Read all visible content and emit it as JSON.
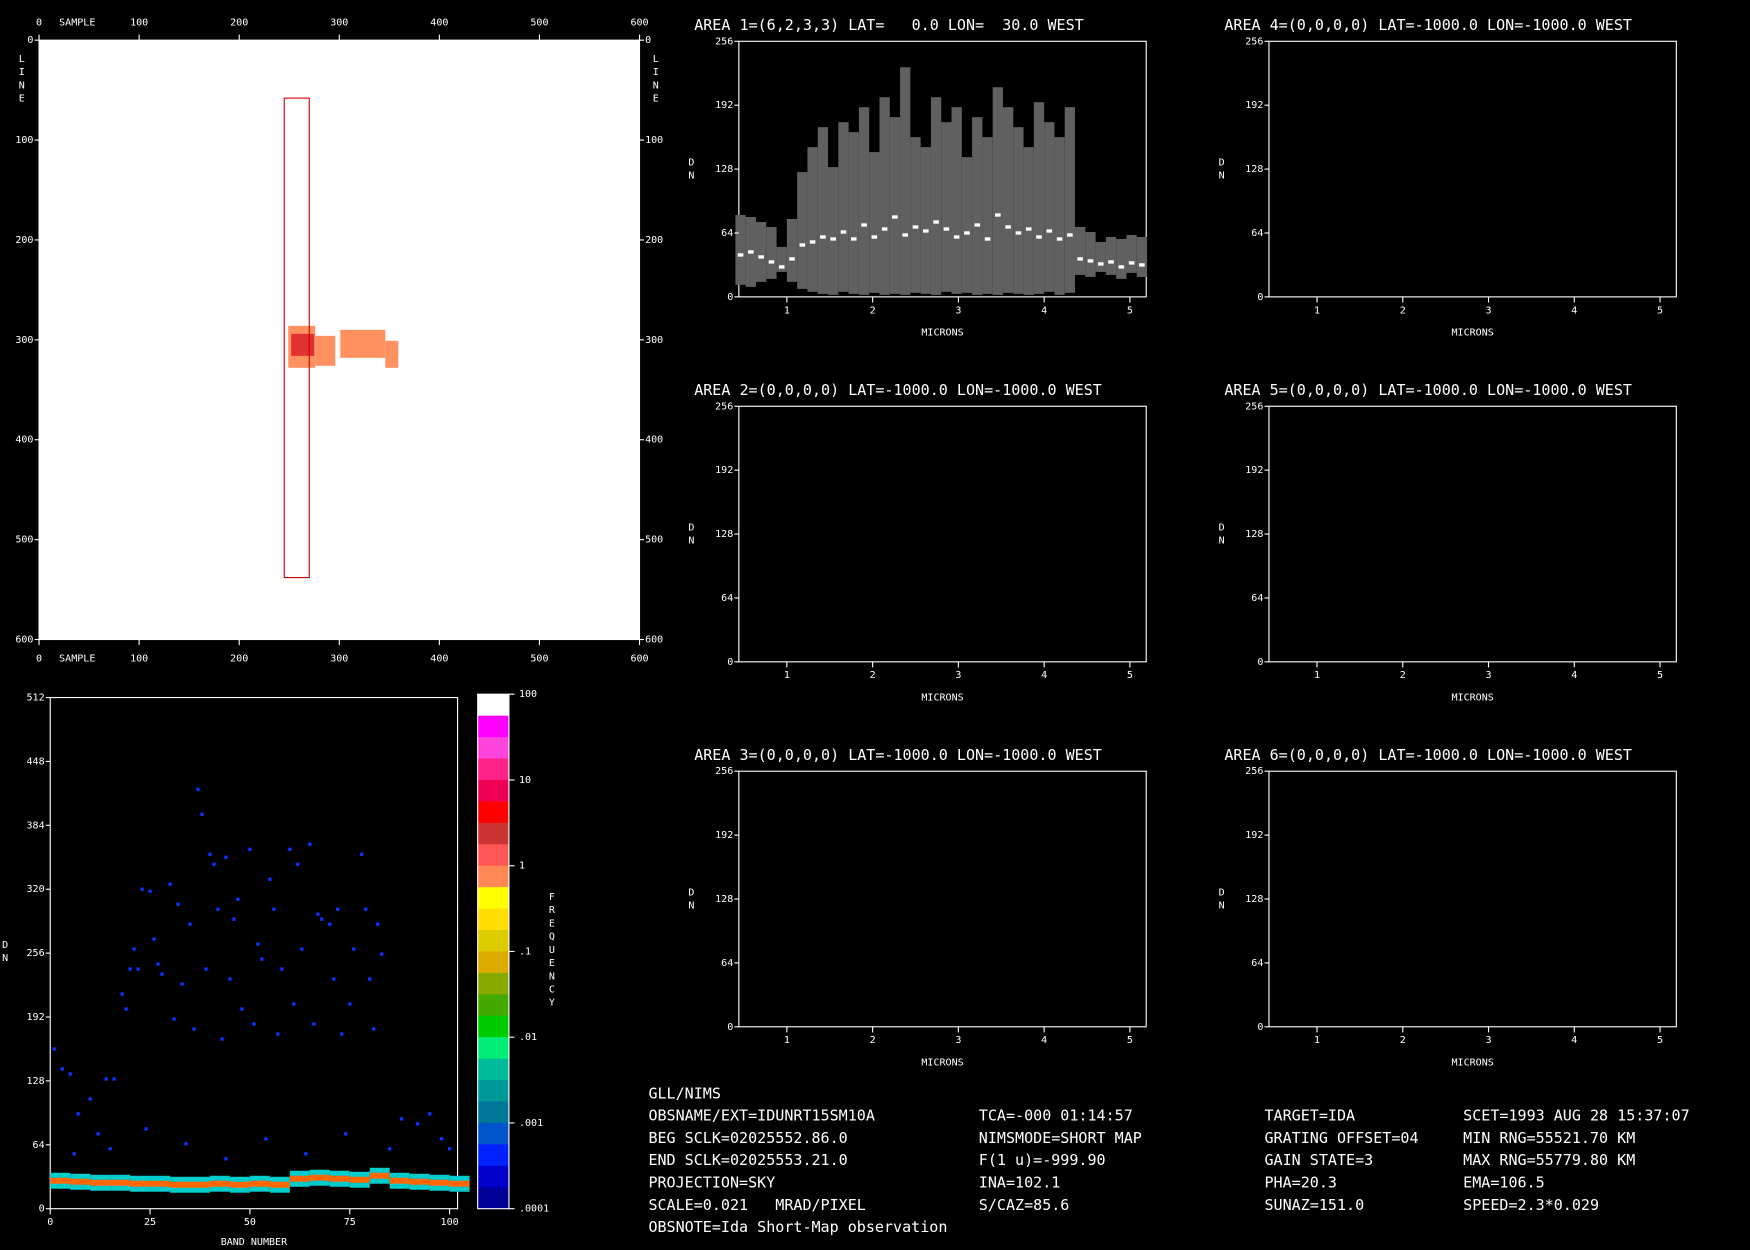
{
  "chart_data": [
    {
      "type": "image",
      "xlabel": "SAMPLE",
      "ylabel": "LINE",
      "xlim": [
        0,
        600
      ],
      "ylim": [
        0,
        600
      ],
      "yreverse": true,
      "xticks": [
        0,
        100,
        200,
        300,
        400,
        500,
        600
      ],
      "yticks": [
        0,
        100,
        200,
        300,
        400,
        500,
        600
      ],
      "plot_background": "#ffffff",
      "patches": [
        {
          "sample": [
            249,
            276
          ],
          "line": [
            286,
            328
          ],
          "color": "#ff9060"
        },
        {
          "sample": [
            276,
            296
          ],
          "line": [
            296,
            326
          ],
          "color": "#ff9060"
        },
        {
          "sample": [
            301,
            346
          ],
          "line": [
            290,
            318
          ],
          "color": "#ff9060"
        },
        {
          "sample": [
            346,
            359
          ],
          "line": [
            301,
            328
          ],
          "color": "#ff9060"
        },
        {
          "sample": [
            252,
            275
          ],
          "line": [
            294,
            316
          ],
          "color": "#e03030"
        }
      ],
      "footprint": {
        "sample": [
          245,
          270
        ],
        "line": [
          58,
          538
        ],
        "color": "#d00000"
      }
    },
    {
      "type": "range",
      "title": "AREA 1=(6,2,3,3) LAT=   0.0 LON=  30.0 WEST",
      "xlabel": "MICRONS",
      "ylabel": "DN",
      "xlim": [
        0.44,
        5.19
      ],
      "ylim": [
        0,
        256
      ],
      "xticks": [
        1,
        2,
        3,
        4,
        5
      ],
      "yticks": [
        0,
        64,
        128,
        192,
        256
      ],
      "range_color": "#606060",
      "mean_color": "#ffffff",
      "x": [
        0.46,
        0.58,
        0.7,
        0.82,
        0.94,
        1.06,
        1.18,
        1.3,
        1.42,
        1.54,
        1.66,
        1.78,
        1.9,
        2.02,
        2.14,
        2.26,
        2.38,
        2.5,
        2.62,
        2.74,
        2.86,
        2.98,
        3.1,
        3.22,
        3.34,
        3.46,
        3.58,
        3.7,
        3.82,
        3.94,
        4.06,
        4.18,
        4.3,
        4.42,
        4.54,
        4.66,
        4.78,
        4.9,
        5.02,
        5.14
      ],
      "low": [
        12,
        10,
        15,
        18,
        25,
        15,
        8,
        5,
        3,
        2,
        5,
        3,
        2,
        4,
        2,
        3,
        2,
        4,
        3,
        2,
        5,
        3,
        4,
        2,
        3,
        2,
        4,
        3,
        2,
        3,
        5,
        2,
        4,
        22,
        20,
        25,
        22,
        18,
        24,
        20
      ],
      "high": [
        82,
        80,
        75,
        70,
        50,
        78,
        125,
        150,
        170,
        130,
        175,
        165,
        190,
        145,
        200,
        180,
        230,
        160,
        150,
        200,
        175,
        190,
        140,
        180,
        160,
        210,
        190,
        170,
        150,
        195,
        175,
        160,
        190,
        70,
        65,
        55,
        60,
        58,
        62,
        60
      ],
      "mean": [
        42,
        45,
        40,
        35,
        30,
        38,
        52,
        55,
        60,
        58,
        65,
        58,
        72,
        60,
        68,
        80,
        62,
        70,
        66,
        75,
        68,
        60,
        64,
        72,
        58,
        82,
        70,
        64,
        68,
        60,
        66,
        58,
        62,
        38,
        36,
        33,
        35,
        30,
        34,
        32
      ]
    },
    {
      "type": "range",
      "title": "AREA 2=(0,0,0,0) LAT=-1000.0 LON=-1000.0 WEST",
      "xlabel": "MICRONS",
      "ylabel": "DN",
      "xlim": [
        0.44,
        5.19
      ],
      "ylim": [
        0,
        256
      ],
      "xticks": [
        1,
        2,
        3,
        4,
        5
      ],
      "yticks": [
        0,
        64,
        128,
        192,
        256
      ]
    },
    {
      "type": "range",
      "title": "AREA 3=(0,0,0,0) LAT=-1000.0 LON=-1000.0 WEST",
      "xlabel": "MICRONS",
      "ylabel": "DN",
      "xlim": [
        0.44,
        5.19
      ],
      "ylim": [
        0,
        256
      ],
      "xticks": [
        1,
        2,
        3,
        4,
        5
      ],
      "yticks": [
        0,
        64,
        128,
        192,
        256
      ]
    },
    {
      "type": "range",
      "title": "AREA 4=(0,0,0,0) LAT=-1000.0 LON=-1000.0 WEST",
      "xlabel": "MICRONS",
      "ylabel": "DN",
      "xlim": [
        0.44,
        5.19
      ],
      "ylim": [
        0,
        256
      ],
      "xticks": [
        1,
        2,
        3,
        4,
        5
      ],
      "yticks": [
        0,
        64,
        128,
        192,
        256
      ]
    },
    {
      "type": "range",
      "title": "AREA 5=(0,0,0,0) LAT=-1000.0 LON=-1000.0 WEST",
      "xlabel": "MICRONS",
      "ylabel": "DN",
      "xlim": [
        0.44,
        5.19
      ],
      "ylim": [
        0,
        256
      ],
      "xticks": [
        1,
        2,
        3,
        4,
        5
      ],
      "yticks": [
        0,
        64,
        128,
        192,
        256
      ]
    },
    {
      "type": "range",
      "title": "AREA 6=(0,0,0,0) LAT=-1000.0 LON=-1000.0 WEST",
      "xlabel": "MICRONS",
      "ylabel": "DN",
      "xlim": [
        0.44,
        5.19
      ],
      "ylim": [
        0,
        256
      ],
      "xticks": [
        1,
        2,
        3,
        4,
        5
      ],
      "yticks": [
        0,
        64,
        128,
        192,
        256
      ]
    },
    {
      "type": "heatmap",
      "xlabel": "BAND NUMBER",
      "ylabel": "DN",
      "xlim": [
        0,
        102
      ],
      "ylim": [
        0,
        512
      ],
      "xticks": [
        0,
        25,
        50,
        75,
        100
      ],
      "yticks": [
        0,
        64,
        128,
        192,
        256,
        320,
        384,
        448,
        512
      ],
      "points": {
        "color": "#1030ff",
        "x": [
          1,
          3,
          5,
          7,
          10,
          12,
          14,
          16,
          18,
          19,
          20,
          21,
          22,
          23,
          25,
          26,
          27,
          28,
          30,
          31,
          32,
          33,
          35,
          36,
          37,
          38,
          39,
          40,
          41,
          42,
          43,
          44,
          45,
          46,
          47,
          48,
          50,
          51,
          52,
          53,
          55,
          56,
          57,
          58,
          60,
          61,
          62,
          63,
          65,
          66,
          67,
          68,
          70,
          71,
          72,
          73,
          75,
          76,
          78,
          79,
          80,
          81,
          82,
          83,
          85,
          88,
          92,
          95,
          98,
          100,
          6,
          15,
          24,
          34,
          44,
          54,
          64,
          74
        ],
        "y": [
          160,
          140,
          135,
          95,
          110,
          75,
          130,
          130,
          215,
          200,
          240,
          260,
          240,
          320,
          318,
          270,
          245,
          235,
          325,
          190,
          305,
          225,
          285,
          180,
          420,
          395,
          240,
          355,
          345,
          300,
          170,
          352,
          230,
          290,
          310,
          200,
          360,
          185,
          265,
          250,
          330,
          300,
          175,
          240,
          360,
          205,
          345,
          260,
          365,
          185,
          295,
          290,
          285,
          230,
          300,
          175,
          205,
          260,
          355,
          300,
          230,
          180,
          285,
          255,
          60,
          90,
          85,
          95,
          70,
          60,
          55,
          60,
          80,
          65,
          50,
          70,
          55,
          75
        ]
      },
      "ridge": {
        "color": "#ff6600",
        "halo_color": "#00cccc",
        "x": [
          0,
          5,
          10,
          15,
          20,
          25,
          30,
          35,
          40,
          45,
          50,
          55,
          60,
          65,
          70,
          75,
          80,
          85,
          90,
          95,
          100
        ],
        "y": [
          28,
          27,
          26,
          26,
          25,
          25,
          24,
          24,
          25,
          24,
          25,
          24,
          30,
          31,
          30,
          29,
          33,
          28,
          27,
          26,
          25
        ]
      },
      "colorbar": {
        "label": "FREQUENCY",
        "log": true,
        "lim": [
          0.0001,
          100
        ],
        "ticks": [
          100,
          10,
          1,
          {
            "value": 0.1,
            "label": ".1"
          },
          {
            "value": 0.01,
            "label": ".01"
          },
          {
            "value": 0.001,
            "label": ".001"
          },
          {
            "value": 0.0001,
            "label": ".0001"
          }
        ],
        "colors": [
          "#ffffff",
          "#ff00ff",
          "#ff44dd",
          "#ff2288",
          "#ee0055",
          "#ff0000",
          "#cc3333",
          "#ff5555",
          "#ff8855",
          "#ffff00",
          "#ffdd00",
          "#ddcc00",
          "#ddaa00",
          "#88aa00",
          "#44aa00",
          "#00cc00",
          "#00ee77",
          "#00bb99",
          "#009999",
          "#007799",
          "#0055cc",
          "#0022ff",
          "#0000cc",
          "#000099"
        ]
      }
    }
  ],
  "info": {
    "rows": [
      [
        "GLL/NIMS"
      ],
      [
        "OBSNAME/EXT=IDUNRT15SM10A",
        "TCA=-000 01:14:57",
        "TARGET=IDA",
        "SCET=1993 AUG 28 15:37:07"
      ],
      [
        "BEG SCLK=02025552.86.0",
        "NIMSMODE=SHORT MAP",
        "GRATING OFFSET=04",
        "MIN RNG=55521.70 KM"
      ],
      [
        "END SCLK=02025553.21.0",
        "F(1 u)=-999.90",
        "GAIN STATE=3",
        "MAX RNG=55779.80 KM"
      ],
      [
        "PROJECTION=SKY",
        "INA=102.1",
        "PHA=20.3",
        "EMA=106.5"
      ],
      [
        "SCALE=0.021   MRAD/PIXEL",
        "S/CAZ=85.6",
        "SUNAZ=151.0",
        "SPEED=2.3*0.029"
      ],
      [
        "OBSNOTE=Ida Short-Map observation"
      ]
    ]
  }
}
